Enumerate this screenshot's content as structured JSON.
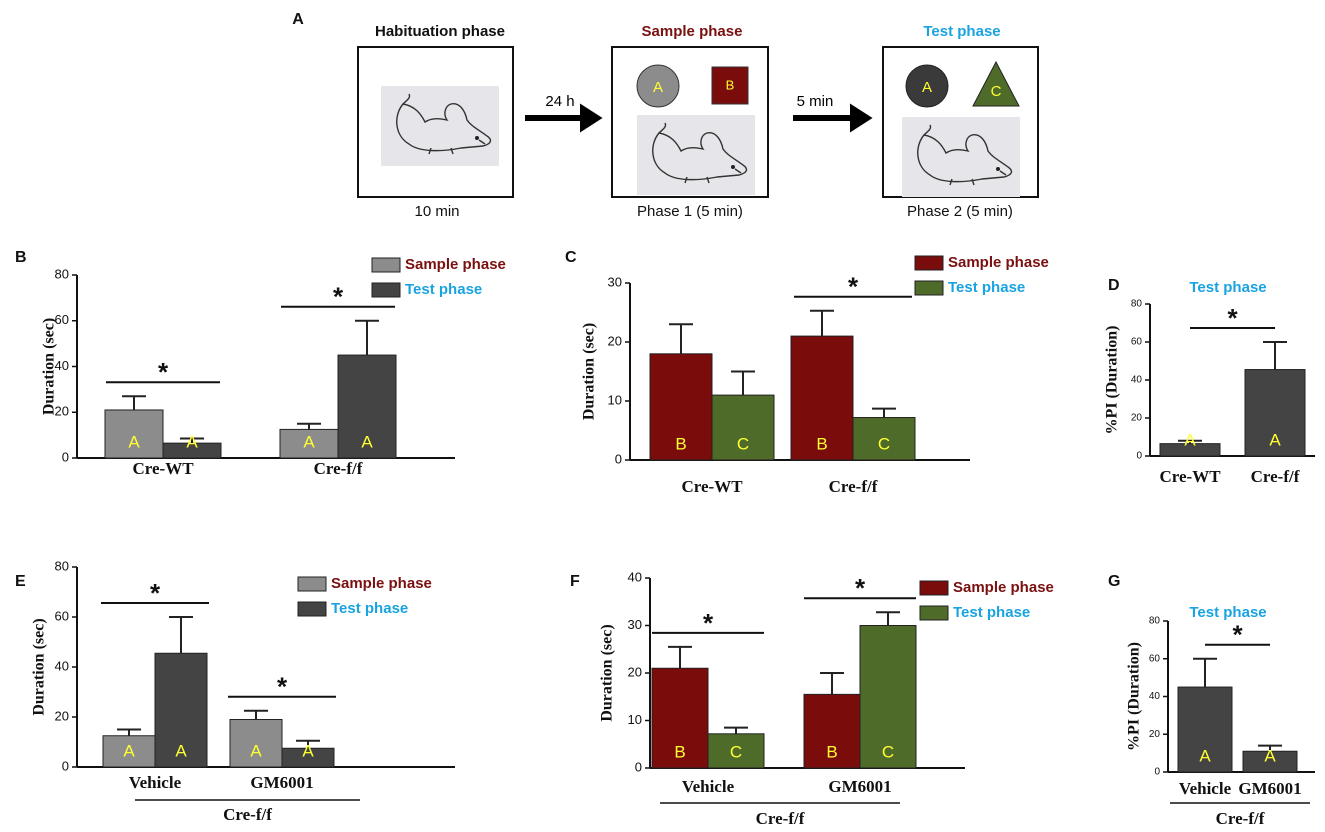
{
  "diagram": {
    "panel": "A",
    "phases": [
      {
        "title": "Habituation phase",
        "caption": "10 min",
        "title_color": "#111111"
      },
      {
        "title": "Sample phase",
        "caption": "Phase 1 (5 min)",
        "objects": [
          "A",
          "B"
        ],
        "title_color": "#7a1010"
      },
      {
        "title": "Test phase",
        "caption": "Phase 2 (5 min)",
        "objects": [
          "A",
          "C"
        ],
        "title_color": "#1aa3e0"
      }
    ],
    "intervals": [
      "24 h",
      "5 min"
    ]
  },
  "chart_data": [
    {
      "panel": "B",
      "type": "bar",
      "ylabel": "Duration (sec)",
      "categories": [
        "Cre-WT",
        "Cre-f/f"
      ],
      "ylim": [
        0,
        80
      ],
      "yticks": [
        0,
        20,
        40,
        60,
        80
      ],
      "series": [
        {
          "name": "Sample phase",
          "color": "#8c8c8c",
          "label_color": "#7a1010",
          "values": [
            21,
            12.5
          ],
          "errors": [
            6,
            2.5
          ],
          "bar_labels": [
            "A",
            "A"
          ]
        },
        {
          "name": "Test phase",
          "color": "#444444",
          "label_color": "#1aa3e0",
          "values": [
            6.5,
            45
          ],
          "errors": [
            2,
            15
          ],
          "bar_labels": [
            "A",
            "A"
          ]
        }
      ],
      "significance": [
        "*",
        "*"
      ]
    },
    {
      "panel": "C",
      "type": "bar",
      "ylabel": "Duration (sec)",
      "categories": [
        "Cre-WT",
        "Cre-f/f"
      ],
      "ylim": [
        0,
        30
      ],
      "yticks": [
        0,
        10,
        20,
        30
      ],
      "series": [
        {
          "name": "Sample phase",
          "color": "#7a0c0c",
          "label_color": "#7a1010",
          "values": [
            18,
            21
          ],
          "errors": [
            5,
            4.3
          ],
          "bar_labels": [
            "B",
            "B"
          ]
        },
        {
          "name": "Test phase",
          "color": "#4f6b2a",
          "label_color": "#1aa3e0",
          "values": [
            11,
            7.2
          ],
          "errors": [
            4,
            1.5
          ],
          "bar_labels": [
            "C",
            "C"
          ]
        }
      ],
      "significance": [
        null,
        "*"
      ]
    },
    {
      "panel": "D",
      "type": "bar",
      "title": "Test phase",
      "title_color": "#1aa3e0",
      "ylabel": "%PI (Duration)",
      "categories": [
        "Cre-WT",
        "Cre-f/f"
      ],
      "ylim": [
        0,
        80
      ],
      "yticks": [
        0,
        20,
        40,
        60,
        80
      ],
      "color": "#444444",
      "values": [
        6.5,
        45.5
      ],
      "errors": [
        1.5,
        14.5
      ],
      "bar_labels": [
        "A",
        "A"
      ],
      "significance": "*"
    },
    {
      "panel": "E",
      "type": "bar",
      "ylabel": "Duration (sec)",
      "categories": [
        "Vehicle",
        "GM6001"
      ],
      "group_label": "Cre-f/f",
      "ylim": [
        0,
        80
      ],
      "yticks": [
        0,
        20,
        40,
        60,
        80
      ],
      "series": [
        {
          "name": "Sample phase",
          "color": "#8c8c8c",
          "label_color": "#7a1010",
          "values": [
            12.5,
            19
          ],
          "errors": [
            2.5,
            3.5
          ],
          "bar_labels": [
            "A",
            "A"
          ]
        },
        {
          "name": "Test phase",
          "color": "#444444",
          "label_color": "#1aa3e0",
          "values": [
            45.5,
            7.5
          ],
          "errors": [
            14.5,
            3
          ],
          "bar_labels": [
            "A",
            "A"
          ]
        }
      ],
      "significance": [
        "*",
        "*"
      ]
    },
    {
      "panel": "F",
      "type": "bar",
      "ylabel": "Duration (sec)",
      "categories": [
        "Vehicle",
        "GM6001"
      ],
      "group_label": "Cre-f/f",
      "ylim": [
        0,
        40
      ],
      "yticks": [
        0,
        10,
        20,
        30,
        40
      ],
      "series": [
        {
          "name": "Sample phase",
          "color": "#7a0c0c",
          "label_color": "#7a1010",
          "values": [
            21,
            15.5
          ],
          "errors": [
            4.5,
            4.5
          ],
          "bar_labels": [
            "B",
            "B"
          ]
        },
        {
          "name": "Test phase",
          "color": "#4f6b2a",
          "label_color": "#1aa3e0",
          "values": [
            7.2,
            30
          ],
          "errors": [
            1.3,
            2.8
          ],
          "bar_labels": [
            "C",
            "C"
          ]
        }
      ],
      "significance": [
        "*",
        "*"
      ]
    },
    {
      "panel": "G",
      "type": "bar",
      "title": "Test phase",
      "title_color": "#1aa3e0",
      "ylabel": "%PI (Duration)",
      "categories": [
        "Vehicle",
        "GM6001"
      ],
      "group_label": "Cre-f/f",
      "ylim": [
        0,
        80
      ],
      "yticks": [
        0,
        20,
        40,
        60,
        80
      ],
      "color": "#444444",
      "values": [
        45,
        11
      ],
      "errors": [
        15,
        3
      ],
      "bar_labels": [
        "A",
        "A"
      ],
      "significance": "*"
    }
  ]
}
